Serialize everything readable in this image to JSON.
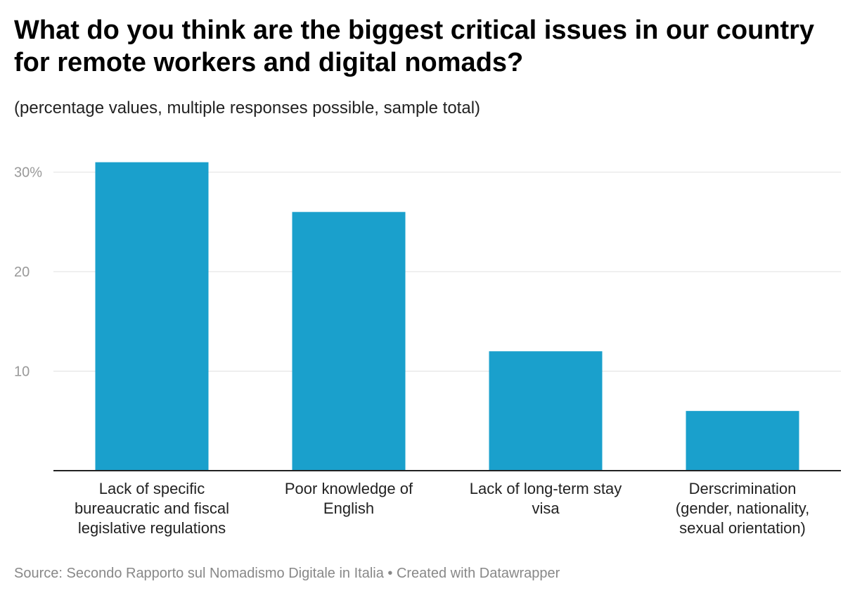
{
  "title": "What do you think are the biggest critical issues in our country for remote workers and digital nomads?",
  "subtitle": "(percentage values, multiple responses possible, sample total)",
  "source": "Source: Secondo Rapporto sul Nomadismo Digitale in Italia • Created with Datawrapper",
  "colors": {
    "bar": "#1aa0cc",
    "grid": "#e0e0e0",
    "axis": "#222222"
  },
  "chart_data": {
    "type": "bar",
    "categories": [
      [
        "Lack of specific",
        "bureaucratic and fiscal",
        "legislative regulations"
      ],
      [
        "Poor knowledge of",
        "English"
      ],
      [
        "Lack of long-term stay",
        "visa"
      ],
      [
        "Derscrimination",
        "(gender, nationality,",
        "sexual orientation)"
      ]
    ],
    "values": [
      31,
      26,
      12,
      6
    ],
    "yticks": [
      {
        "value": 10,
        "label": "10"
      },
      {
        "value": 20,
        "label": "20"
      },
      {
        "value": 30,
        "label": "30%"
      }
    ],
    "ylim": [
      0,
      30.9
    ],
    "xlabel": "",
    "ylabel": "",
    "grid": true
  }
}
